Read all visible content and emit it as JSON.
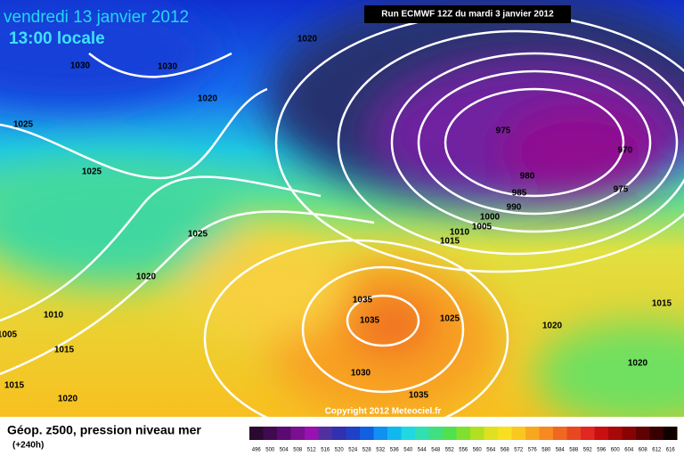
{
  "header": {
    "date": "vendredi 13 janvier 2012",
    "time": "13:00 locale",
    "run": "Run ECMWF 12Z du mardi 3 janvier 2012"
  },
  "isobar_labels": [
    1020,
    1030,
    1030,
    1020,
    1025,
    1025,
    1025,
    1020,
    1010,
    1005,
    1015,
    1015,
    1020,
    1035,
    1035,
    1030,
    1035,
    1025,
    975,
    970,
    980,
    985,
    990,
    1000,
    1005,
    1010,
    1015,
    975,
    1015,
    1020,
    1020
  ],
  "copyright": "Copyright 2012 Meteociel.fr",
  "legend": {
    "title": "Géop. z500, pression niveau mer",
    "lead": "(+240h)",
    "scale": [
      496,
      500,
      504,
      508,
      512,
      516,
      520,
      524,
      528,
      532,
      536,
      540,
      544,
      548,
      552,
      556,
      560,
      564,
      568,
      572,
      576,
      580,
      584,
      588,
      592,
      596,
      600,
      604,
      608,
      612,
      616
    ]
  }
}
